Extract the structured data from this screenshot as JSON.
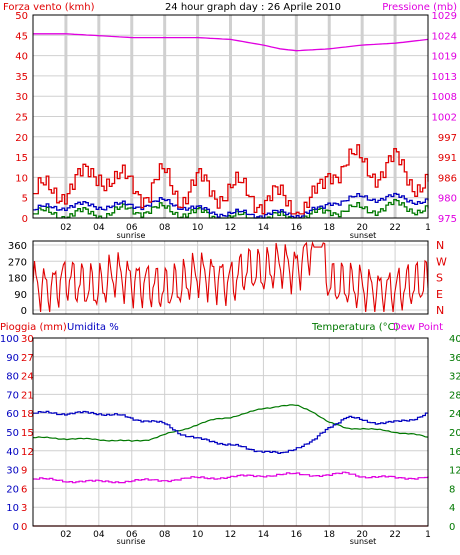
{
  "colors": {
    "red": "#e00000",
    "magenta": "#e000e0",
    "blue": "#0000c0",
    "green": "#007800",
    "grid": "#d0d0d0",
    "frame": "#000000"
  },
  "top": {
    "title": "24 hour graph day : 26 Aprile 2010",
    "left_label": "Forza vento (kmh)",
    "right_label": "Pressione (mb)",
    "left_ticks": [
      "50",
      "45",
      "40",
      "35",
      "30",
      "25",
      "20",
      "15",
      "10",
      "5",
      "0"
    ],
    "right_ticks": [
      "1029",
      "1024",
      "1019",
      "1013",
      "1008",
      "1002",
      "997",
      "991",
      "986",
      "980",
      "975"
    ],
    "right_ticks_highlight": [
      "997",
      "991",
      "986"
    ]
  },
  "middle": {
    "left_ticks": [
      "360",
      "270",
      "180",
      "90",
      "0"
    ],
    "right_ticks": [
      "N",
      "W",
      "S",
      "E",
      "N"
    ]
  },
  "bottom": {
    "left_label_rain": "Pioggia (mm)",
    "left_label_hum": "Umidita %",
    "right_label_temp": "Temperatura (°C)",
    "right_label_dew": "Dew Point",
    "hum_ticks": [
      "100",
      "90",
      "80",
      "70",
      "60",
      "50",
      "40",
      "30",
      "20",
      "10",
      "0"
    ],
    "rain_ticks": [
      "30",
      "27",
      "24",
      "21",
      "18",
      "15",
      "12",
      "9",
      "6",
      "3",
      "0"
    ],
    "temp_ticks": [
      "40",
      "36",
      "32",
      "28",
      "24",
      "20",
      "16",
      "12",
      "8",
      "4",
      "0"
    ]
  },
  "x_ticks": [
    "02",
    "04",
    "06",
    "08",
    "10",
    "12",
    "14",
    "16",
    "18",
    "20",
    "22"
  ],
  "x_end_tick": "1",
  "sunrise_label": "sunrise",
  "sunset_label": "sunset",
  "chart_data": [
    {
      "type": "line",
      "title": "24 hour graph day : 26 Aprile 2010",
      "x_unit": "hour",
      "xlim": [
        0,
        24
      ],
      "ylabel": "Forza vento (kmh)",
      "ylim": [
        0,
        50
      ],
      "y2label": "Pressione (mb)",
      "y2lim": [
        975,
        1029
      ],
      "series": [
        {
          "name": "Pressione (mb)",
          "axis": "right",
          "x": [
            0,
            2,
            4,
            6,
            8,
            10,
            12,
            14,
            15,
            16,
            18,
            20,
            22,
            24
          ],
          "values": [
            1024,
            1024,
            1023.5,
            1023,
            1023,
            1023,
            1022.5,
            1021,
            1020,
            1019.5,
            1020,
            1021,
            1021.5,
            1022.5
          ]
        },
        {
          "name": "Gust",
          "axis": "left",
          "x": [
            0,
            1,
            2,
            3,
            4,
            5,
            6,
            7,
            8,
            9,
            10,
            11,
            12,
            13,
            14,
            15,
            16,
            17,
            17.5,
            18,
            19,
            20,
            21,
            22,
            23,
            24
          ],
          "values": [
            6,
            6,
            8,
            9,
            12,
            8,
            9,
            6,
            10,
            6,
            8,
            7,
            7,
            6,
            5,
            4,
            3,
            4,
            6,
            12,
            14,
            13,
            12,
            13,
            10,
            8
          ]
        },
        {
          "name": "Speed",
          "axis": "left",
          "x": [
            0,
            2,
            4,
            6,
            8,
            10,
            12,
            14,
            16,
            17.5,
            18,
            20,
            22,
            24
          ],
          "values": [
            2,
            3,
            3,
            3,
            4,
            2,
            1,
            1,
            1,
            2,
            4,
            5,
            5,
            4
          ]
        },
        {
          "name": "Min",
          "axis": "left",
          "x": [
            0,
            2,
            4,
            6,
            8,
            10,
            12,
            14,
            16,
            17.5,
            18,
            20,
            22,
            24
          ],
          "values": [
            1,
            1,
            1,
            2,
            2,
            1,
            0,
            0,
            0,
            1,
            2,
            2,
            3,
            2
          ]
        }
      ]
    },
    {
      "type": "line",
      "x_unit": "hour",
      "xlim": [
        0,
        24
      ],
      "ylim": [
        0,
        360
      ],
      "series": [
        {
          "name": "Direzione",
          "x": [
            0,
            1,
            2,
            3,
            4,
            5,
            6,
            7,
            8,
            9,
            10,
            11,
            12,
            13,
            14,
            15,
            16,
            17,
            17.5,
            18,
            19,
            20,
            21,
            22,
            23,
            24
          ],
          "values": [
            150,
            120,
            180,
            140,
            120,
            200,
            160,
            150,
            120,
            140,
            200,
            180,
            160,
            220,
            200,
            250,
            220,
            340,
            320,
            150,
            140,
            130,
            110,
            120,
            140,
            160
          ]
        }
      ]
    },
    {
      "type": "line",
      "x_unit": "hour",
      "xlim": [
        0,
        24
      ],
      "ylim_humidity": [
        0,
        100
      ],
      "ylim_rain": [
        0,
        30
      ],
      "ylim_temp": [
        0,
        40
      ],
      "series": [
        {
          "name": "Umidita %",
          "axis": "humidity",
          "x": [
            0,
            2,
            4,
            5,
            6,
            7,
            8,
            9,
            10,
            11,
            12,
            13,
            14,
            15,
            16,
            17,
            18,
            19,
            20,
            21,
            22,
            23,
            24
          ],
          "values": [
            60,
            60,
            60,
            59,
            57,
            56,
            54,
            49,
            46,
            45,
            43,
            41,
            40,
            38,
            42,
            45,
            53,
            58,
            56,
            55,
            55,
            57,
            60
          ]
        },
        {
          "name": "Temperatura (°C)",
          "axis": "temp",
          "x": [
            0,
            2,
            4,
            5,
            6,
            7,
            8,
            9,
            10,
            11,
            12,
            13,
            14,
            15,
            16,
            17,
            18,
            19,
            20,
            21,
            22,
            23,
            24
          ],
          "values": [
            18.8,
            18.6,
            18.4,
            18.2,
            18.0,
            18.4,
            19.4,
            20.4,
            21.6,
            22.6,
            23.2,
            24.0,
            25.0,
            25.6,
            25.6,
            24.4,
            22.0,
            20.8,
            20.8,
            20.4,
            20.0,
            19.6,
            18.8
          ]
        },
        {
          "name": "Dew Point",
          "axis": "temp",
          "x": [
            0,
            2,
            4,
            6,
            8,
            10,
            12,
            14,
            16,
            18,
            19,
            20,
            22,
            24
          ],
          "values": [
            10.0,
            9.6,
            9.4,
            9.6,
            9.8,
            10.2,
            10.4,
            10.8,
            11.0,
            10.8,
            11.2,
            10.6,
            10.2,
            10.4
          ]
        },
        {
          "name": "Pioggia (mm)",
          "axis": "rain",
          "x": [
            0,
            24
          ],
          "values": [
            0,
            0
          ]
        }
      ]
    }
  ]
}
